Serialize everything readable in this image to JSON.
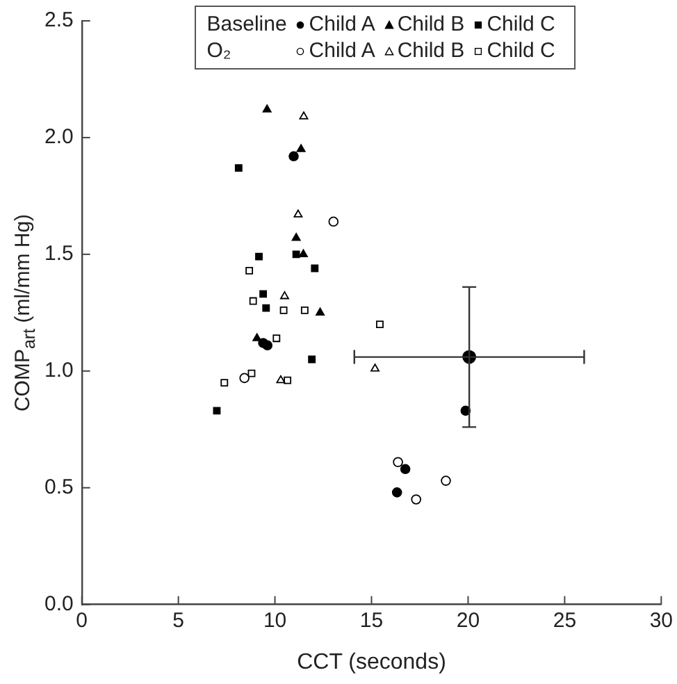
{
  "chart_data": {
    "type": "scatter",
    "xlabel": "CCT (seconds)",
    "ylabel": "COMP$_{art}$ (ml/mm Hg)",
    "xlim": [
      0,
      30
    ],
    "xticks": [
      0,
      5,
      10,
      15,
      20,
      25,
      30
    ],
    "ylim": [
      0,
      2.5
    ],
    "yticks": [
      {
        "value": 0,
        "label": "0.0"
      },
      {
        "value": 0.5,
        "label": "0.5"
      },
      {
        "value": 1,
        "label": "1.0"
      },
      {
        "value": 1.5,
        "label": "1.5"
      },
      {
        "value": 2,
        "label": "2.0"
      },
      {
        "value": 2.5,
        "label": "2.5"
      }
    ],
    "legend": "top",
    "annotations": [
      "Baseline",
      "O₂"
    ],
    "series": [
      {
        "name": "Child A",
        "color": "#000000",
        "marker": "circle",
        "x": [
          10.97,
          9.39,
          9.61,
          19.87,
          16.75,
          16.32
        ],
        "values": [
          1.92,
          1.12,
          1.11,
          0.83,
          0.58,
          0.48
        ]
      },
      {
        "name": "Child B",
        "color": "#000000",
        "marker": "triangle",
        "x": [
          9.59,
          11.35,
          11.1,
          11.47,
          12.34,
          9.07
        ],
        "values": [
          2.12,
          1.95,
          1.57,
          1.5,
          1.25,
          1.14
        ]
      },
      {
        "name": "Child C",
        "color": "#000000",
        "marker": "square",
        "x": [
          8.12,
          9.17,
          11.1,
          12.06,
          9.39,
          9.54,
          11.91,
          6.99
        ],
        "values": [
          1.87,
          1.49,
          1.5,
          1.44,
          1.33,
          1.27,
          1.05,
          0.83
        ]
      },
      {
        "name": "Child A",
        "color": "#ffffff",
        "marker": "circle",
        "x": [
          13.03,
          8.42,
          16.37,
          18.85,
          17.31
        ],
        "values": [
          1.64,
          0.97,
          0.61,
          0.53,
          0.45
        ]
      },
      {
        "name": "Child B",
        "color": "#ffffff",
        "marker": "triangle",
        "x": [
          11.49,
          11.2,
          10.5,
          10.3,
          15.18
        ],
        "values": [
          2.09,
          1.67,
          1.32,
          0.96,
          1.01
        ]
      },
      {
        "name": "Child C",
        "color": "#ffffff",
        "marker": "square",
        "x": [
          8.67,
          8.87,
          10.45,
          11.54,
          10.08,
          15.43,
          8.79,
          10.65,
          7.38
        ],
        "values": [
          1.43,
          1.3,
          1.26,
          1.26,
          1.14,
          1.2,
          0.99,
          0.96,
          0.95
        ]
      },
      {
        "color": "#000000",
        "marker": "circle",
        "x": [
          20.06
        ],
        "values": [
          1.06
        ],
        "errors": [
          0.3
        ],
        "xerrors": [
          5.95
        ]
      }
    ]
  }
}
